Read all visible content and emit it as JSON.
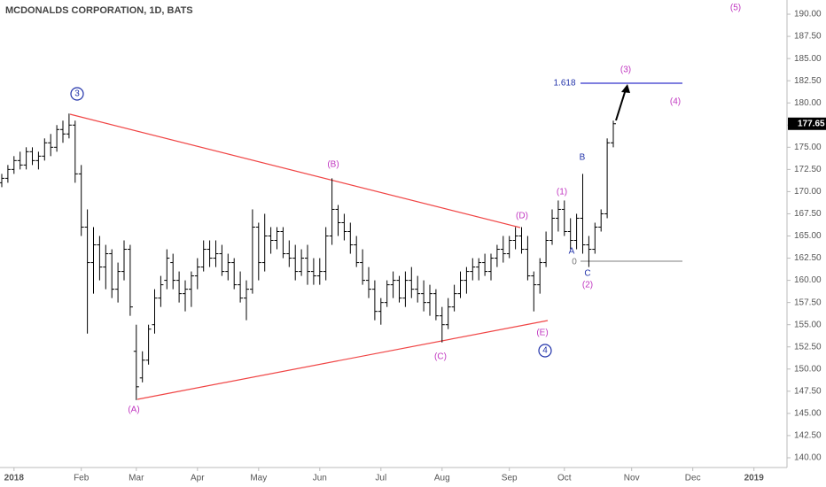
{
  "chart_data": {
    "type": "ohlc",
    "title": "MCDONALDS CORPORATION, 1D, BATS",
    "color": "#000000",
    "categories": [
      null,
      null,
      "2018",
      null,
      null,
      null,
      null,
      null,
      null,
      null,
      null,
      null,
      null,
      "Feb",
      null,
      null,
      null,
      null,
      null,
      null,
      null,
      null,
      "Mar",
      null,
      null,
      null,
      null,
      null,
      null,
      null,
      null,
      null,
      "Apr",
      null,
      null,
      null,
      null,
      null,
      null,
      null,
      null,
      null,
      "May",
      null,
      null,
      null,
      null,
      null,
      null,
      null,
      null,
      null,
      "Jun",
      null,
      null,
      null,
      null,
      null,
      null,
      null,
      null,
      null,
      "Jul",
      null,
      null,
      null,
      null,
      null,
      null,
      null,
      null,
      null,
      "Aug",
      null,
      null,
      null,
      null,
      null,
      null,
      null,
      null,
      null,
      null,
      "Sep",
      null,
      null,
      null,
      null,
      null,
      null,
      null,
      null,
      "Oct",
      null,
      null,
      null,
      null,
      null,
      null,
      null,
      null,
      null,
      null,
      "Nov",
      null,
      null,
      null,
      null,
      null,
      null,
      null,
      null,
      null,
      "Dec",
      null,
      null,
      null,
      null,
      null,
      null,
      null,
      null,
      null,
      "2019",
      null,
      null,
      null,
      null
    ],
    "bars": [
      [
        171,
        172,
        170.5,
        171.5
      ],
      [
        171.5,
        173,
        171,
        172.5
      ],
      [
        172.5,
        174,
        172,
        173.5
      ],
      [
        173.5,
        174.5,
        172.5,
        173
      ],
      [
        173,
        175,
        172.5,
        174.5
      ],
      [
        174.5,
        175,
        173,
        173.5
      ],
      [
        173.5,
        174.5,
        172.5,
        174
      ],
      [
        174,
        176,
        173.5,
        175.5
      ],
      [
        175.5,
        176.5,
        174,
        175
      ],
      [
        175,
        177.5,
        174.5,
        177
      ],
      [
        177,
        178,
        175.5,
        176.5
      ],
      [
        176.5,
        178.8,
        176,
        177.5
      ],
      [
        177.5,
        178,
        171,
        172
      ],
      [
        172,
        173,
        165,
        166
      ],
      [
        166,
        168,
        154,
        162
      ],
      [
        162,
        166,
        158.5,
        164
      ],
      [
        164,
        165,
        160,
        161.5
      ],
      [
        161.5,
        164,
        159,
        163
      ],
      [
        163,
        163.5,
        158,
        159
      ],
      [
        159,
        162,
        157.5,
        161
      ],
      [
        161,
        164.5,
        160,
        163.5
      ],
      [
        163.5,
        164,
        156,
        157
      ],
      [
        152,
        155,
        146.5,
        148
      ],
      [
        149,
        152,
        148.5,
        151
      ],
      [
        151,
        155,
        150.5,
        154.5
      ],
      [
        155,
        159,
        154,
        158
      ],
      [
        158,
        160.5,
        157,
        159.5
      ],
      [
        160,
        163.5,
        159,
        162.5
      ],
      [
        162,
        163,
        159,
        160
      ],
      [
        160,
        161,
        157.5,
        158.5
      ],
      [
        158.5,
        160,
        156.5,
        159
      ],
      [
        159,
        161,
        157,
        160.5
      ],
      [
        160.5,
        162.5,
        159,
        161.5
      ],
      [
        161.5,
        164.5,
        161,
        163.5
      ],
      [
        163.5,
        164.5,
        161.5,
        162.5
      ],
      [
        162.5,
        164.5,
        161.5,
        163
      ],
      [
        163,
        164,
        160.5,
        161
      ],
      [
        161,
        163,
        160,
        162
      ],
      [
        162,
        162.5,
        159,
        159.5
      ],
      [
        159.5,
        161,
        157.5,
        158
      ],
      [
        158,
        160,
        155.5,
        159
      ],
      [
        159,
        168,
        158.5,
        166
      ],
      [
        166,
        166.5,
        160,
        162
      ],
      [
        162,
        167.5,
        161,
        165
      ],
      [
        165,
        166,
        163,
        164.5
      ],
      [
        164.5,
        166,
        163.5,
        165.5
      ],
      [
        165.5,
        166,
        162.5,
        163
      ],
      [
        163,
        164.5,
        161.5,
        162.5
      ],
      [
        162.5,
        164,
        160,
        161
      ],
      [
        161,
        163.5,
        160.5,
        162.5
      ],
      [
        162.5,
        164,
        159.5,
        161
      ],
      [
        161,
        162.5,
        159.5,
        160.5
      ],
      [
        160.5,
        162.5,
        159.5,
        161
      ],
      [
        161,
        166,
        160,
        165
      ],
      [
        165,
        171.5,
        164,
        168
      ],
      [
        168,
        168.5,
        165,
        166.5
      ],
      [
        166.5,
        167.5,
        164.5,
        165.5
      ],
      [
        165.5,
        166.5,
        163,
        164
      ],
      [
        164,
        165,
        161.5,
        162
      ],
      [
        162,
        163.5,
        159.5,
        160
      ],
      [
        160,
        161.5,
        158,
        159
      ],
      [
        159,
        160,
        155.5,
        156.5
      ],
      [
        156.5,
        158,
        155,
        157.5
      ],
      [
        157.5,
        160,
        157,
        159.5
      ],
      [
        159.5,
        161,
        158,
        160
      ],
      [
        160,
        160.5,
        157.5,
        158
      ],
      [
        158,
        161,
        157,
        160
      ],
      [
        160,
        161.5,
        158,
        159
      ],
      [
        159,
        160.5,
        157.5,
        158.5
      ],
      [
        158.5,
        160,
        156.5,
        157.5
      ],
      [
        157.5,
        159.5,
        156,
        158.5
      ],
      [
        158.5,
        159,
        155.5,
        156
      ],
      [
        156,
        157,
        153,
        155
      ],
      [
        155,
        158,
        154.5,
        157
      ],
      [
        157,
        159.5,
        156.5,
        158.5
      ],
      [
        158.5,
        161,
        158,
        160
      ],
      [
        160,
        161.5,
        158.5,
        161
      ],
      [
        161,
        162.5,
        160,
        161.5
      ],
      [
        161.5,
        162.5,
        160,
        162
      ],
      [
        162,
        163,
        160.5,
        161
      ],
      [
        161,
        163,
        160,
        162.5
      ],
      [
        162.5,
        164,
        161.5,
        163.5
      ],
      [
        163.5,
        165,
        162,
        163
      ],
      [
        163,
        165,
        162.5,
        164.5
      ],
      [
        164.5,
        166,
        163.5,
        165
      ],
      [
        165,
        166,
        163,
        163.5
      ],
      [
        163.5,
        165,
        160,
        160.5
      ],
      [
        160.5,
        161,
        156.5,
        159.5
      ],
      [
        159.5,
        162.5,
        158.5,
        162
      ],
      [
        162,
        165.5,
        161.5,
        164.5
      ],
      [
        164.5,
        168,
        164,
        167
      ],
      [
        167,
        169,
        165.5,
        168
      ],
      [
        168,
        169,
        165,
        165.5
      ],
      [
        165.5,
        167,
        163.5,
        164.5
      ],
      [
        164.5,
        167.5,
        163.5,
        167
      ],
      [
        167,
        172,
        163,
        164
      ],
      [
        164,
        165,
        161.5,
        163.5
      ],
      [
        163.5,
        166.5,
        163,
        166
      ],
      [
        166,
        168,
        165.5,
        167.5
      ],
      [
        167.5,
        176,
        167,
        175.5
      ],
      [
        175.5,
        178,
        175,
        177.65
      ],
      null,
      null,
      null,
      null,
      null,
      null,
      null,
      null,
      null,
      null,
      null,
      null,
      null,
      null,
      null,
      null,
      null,
      null,
      null,
      null,
      null,
      null,
      null,
      null,
      null,
      null,
      null
    ],
    "ylim": [
      138.9,
      191.6
    ],
    "yticks": [
      {
        "value": 190,
        "label": "190.00"
      },
      {
        "value": 187.5,
        "label": "187.50"
      },
      {
        "value": 185,
        "label": "185.00"
      },
      {
        "value": 182.5,
        "label": "182.50"
      },
      {
        "value": 180,
        "label": "180.00"
      },
      {
        "value": 177.5,
        "label": "177.50"
      },
      {
        "value": 175,
        "label": "175.00"
      },
      {
        "value": 172.5,
        "label": "172.50"
      },
      {
        "value": 170,
        "label": "170.00"
      },
      {
        "value": 167.5,
        "label": "167.50"
      },
      {
        "value": 165,
        "label": "165.00"
      },
      {
        "value": 162.5,
        "label": "162.50"
      },
      {
        "value": 160,
        "label": "160.00"
      },
      {
        "value": 157.5,
        "label": "157.50"
      },
      {
        "value": 155,
        "label": "155.00"
      },
      {
        "value": 152.5,
        "label": "152.50"
      },
      {
        "value": 150,
        "label": "150.00"
      },
      {
        "value": 147.5,
        "label": "147.50"
      },
      {
        "value": 145,
        "label": "145.00"
      },
      {
        "value": 142.5,
        "label": "142.50"
      },
      {
        "value": 140,
        "label": "140.00"
      }
    ],
    "annotations": [
      "(5)",
      "(3)",
      "(4)",
      "(B)",
      "(D)",
      "(1)",
      "B",
      "A",
      "0",
      "C",
      "(2)",
      "(E)",
      "(C)",
      "(A)",
      "3",
      "4",
      "1.618"
    ]
  }
}
